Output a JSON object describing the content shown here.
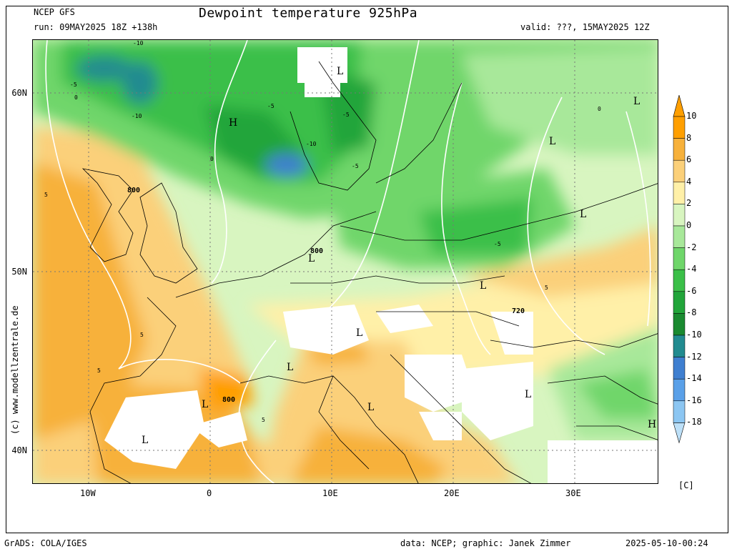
{
  "header": {
    "model": "NCEP GFS",
    "run": "run: 09MAY2025 18Z +138h",
    "title": "Dewpoint temperature 925hPa",
    "valid": "valid: ???, 15MAY2025 12Z"
  },
  "axes": {
    "x_ticks": [
      "10W",
      "0",
      "10E",
      "20E",
      "30E"
    ],
    "y_ticks": [
      "60N",
      "50N",
      "40N"
    ]
  },
  "colorbar": {
    "labels": [
      "10",
      "8",
      "6",
      "4",
      "2",
      "0",
      "-2",
      "-4",
      "-6",
      "-8",
      "-10",
      "-12",
      "-14",
      "-16",
      "-18"
    ],
    "unit": "[C]",
    "colors": [
      "#ff9f00",
      "#f7b13b",
      "#fbd07a",
      "#fff0a8",
      "#d8f5c0",
      "#a8e89a",
      "#6fd66a",
      "#3bbf48",
      "#22a53a",
      "#1a8a30",
      "#228b90",
      "#3f7fd0",
      "#5aa0e8",
      "#8cc6f2",
      "#bde0f8"
    ]
  },
  "map_labels": [
    {
      "text": "H"
    },
    {
      "text": "L"
    },
    {
      "text": "L"
    },
    {
      "text": "L"
    },
    {
      "text": "L"
    },
    {
      "text": "L"
    },
    {
      "text": "L"
    },
    {
      "text": "L"
    },
    {
      "text": "L"
    },
    {
      "text": "L"
    },
    {
      "text": "L"
    },
    {
      "text": "L"
    },
    {
      "text": "H"
    },
    {
      "text": "L"
    },
    {
      "text": "800"
    },
    {
      "text": "800"
    },
    {
      "text": "720"
    },
    {
      "text": "800"
    },
    {
      "text": "-10"
    },
    {
      "text": "-10"
    },
    {
      "text": "-10"
    },
    {
      "text": "-5"
    },
    {
      "text": "-5"
    },
    {
      "text": "-5"
    },
    {
      "text": "0"
    },
    {
      "text": "0"
    },
    {
      "text": "5"
    },
    {
      "text": "5"
    },
    {
      "text": "5"
    },
    {
      "text": "5"
    },
    {
      "text": "-5"
    },
    {
      "text": "-5"
    },
    {
      "text": "0"
    },
    {
      "text": "5"
    }
  ],
  "footer": {
    "left": "GrADS: COLA/IGES",
    "credits": "data: NCEP; graphic: Janek Zimmer",
    "timestamp": "2025-05-10-00:24",
    "copyright": "(c) www.modellzentrale.de"
  }
}
